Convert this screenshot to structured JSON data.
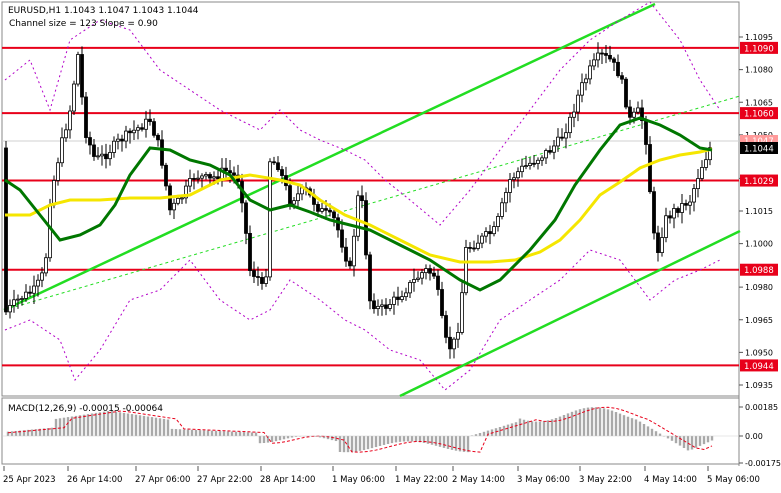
{
  "header": {
    "symbol_line": "EURUSD,H1  1.1043 1.1047 1.1043 1.1044",
    "channel_line": "Channel size = 123 Slope = 0.90"
  },
  "macd": {
    "label": "MACD(12,26,9) -0.00015 -0.00064"
  },
  "chart_data": {
    "type": "candlestick",
    "symbol": "EURUSD",
    "timeframe": "H1",
    "ohlc_current": {
      "open": 1.1043,
      "high": 1.1047,
      "low": 1.1043,
      "close": 1.1044
    },
    "price_axis_ticks": [
      1.1095,
      1.108,
      1.1065,
      1.105,
      1.103,
      1.1015,
      1.1,
      1.098,
      1.0965,
      1.095,
      1.0935
    ],
    "price_levels": [
      {
        "label": "1.1090",
        "value": 1.109
      },
      {
        "label": "1.1060",
        "value": 1.106
      },
      {
        "label": "1.1029",
        "value": 1.1029
      },
      {
        "label": "1.0988",
        "value": 1.0988
      },
      {
        "label": "1.0944",
        "value": 1.0944
      }
    ],
    "bid_label": "1.1047",
    "current_price_label": "1.1044",
    "macd_axis_ticks": [
      "0.00185",
      "0.00",
      "-0.00175"
    ],
    "x_labels": [
      "25 Apr 2023",
      "26 Apr 14:00",
      "27 Apr 06:00",
      "27 Apr 22:00",
      "28 Apr 14:00",
      "1 May 06:00",
      "1 May 22:00",
      "2 May 14:00",
      "3 May 06:00",
      "3 May 22:00",
      "4 May 14:00",
      "5 May 06:00"
    ],
    "colors": {
      "level": "#e8001a",
      "channel": "#22dd22",
      "ma_slow": "#007700",
      "ma_fast": "#f5e600",
      "bollinger": "#b200c8",
      "price_tag": "#e8001a",
      "candle": "#000000"
    }
  }
}
